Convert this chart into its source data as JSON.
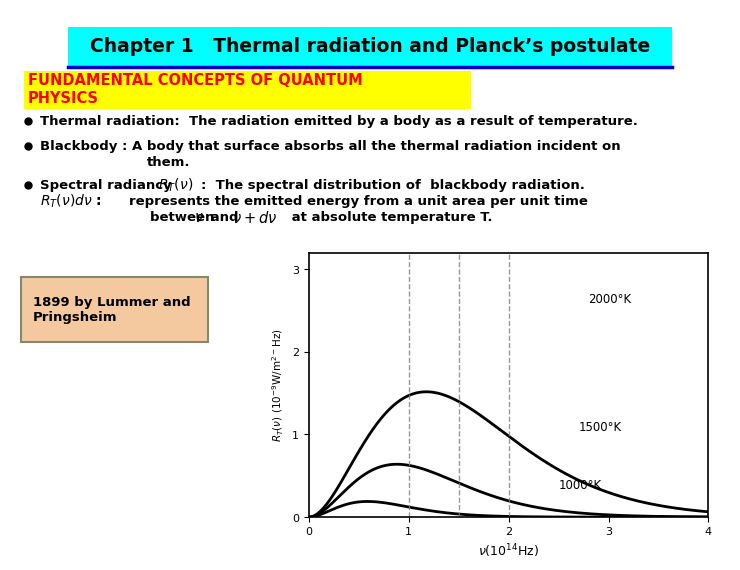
{
  "title": "Chapter 1   Thermal radiation and Planck’s postulate",
  "title_bg": "#00FFFF",
  "title_color": "#000000",
  "fundamental_text": "FUNDAMENTAL CONCEPTS OF QUANTUM\nPHYSICS",
  "fundamental_bg": "#FFFF00",
  "fundamental_color": "#FF0000",
  "bullet1": "Thermal radiation:  The radiation emitted by a body as a result of temperature.",
  "bullet2_line1": "Blackbody : A body that surface absorbs all the thermal radiation incident on",
  "bullet2_line2": "them.",
  "bullet3_line1": "Spectral radiancy ",
  "bullet3_math": "R_T(\\nu)",
  "bullet3_rest": ":  The spectral distribution of  blackbody radiation.",
  "bullet3b_math": "R_T(\\nu)d\\nu :",
  "bullet3b_rest": "  represents the emitted energy from a unit area per unit time",
  "bullet3c": "between ",
  "bullet3c_math1": "\\nu",
  "bullet3c_and": " and ",
  "bullet3c_math2": "\\nu+d\\nu",
  "bullet3c_rest": " at absolute temperature T.",
  "box_text": "1899 by Lummer and\nPringsheim",
  "box_bg": "#F5C9A0",
  "temperatures": [
    2000,
    1500,
    1000
  ],
  "temp_labels": [
    "2000°K",
    "1500°K",
    "1000°K"
  ],
  "nu_max_2000": 2.0,
  "nu_max_1500": 1.5,
  "nu_max_1000": 1.0,
  "nu_range": [
    0,
    4
  ],
  "R_range": [
    0,
    3
  ],
  "xlabel": "ν(10¹14Hz)",
  "ylabel": "R_T(v) (10⁻⁹W/m²⁻Hz)",
  "line_color": "#000000",
  "dashed_color": "#888888",
  "bg_color": "#FFFFFF",
  "slide_bg": "#FFFFFF"
}
